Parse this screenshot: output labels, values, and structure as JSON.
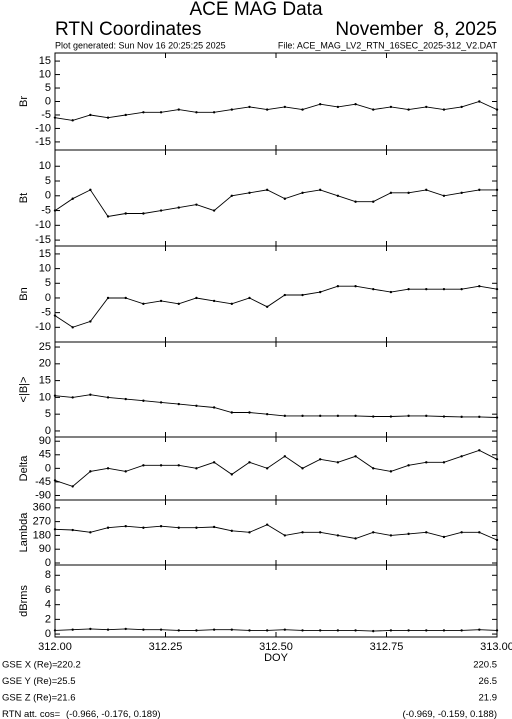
{
  "header": {
    "title": "ACE MAG Data",
    "left": "RTN Coordinates",
    "right": "November  8, 2025",
    "generated": "Plot generated: Sun Nov 16 20:25:25 2025",
    "file": "File:  ACE_MAG_LV2_RTN_16SEC_2025-312_V2.DAT"
  },
  "chart_data": [
    {
      "type": "line",
      "ylabel": "Br",
      "color": "#000000",
      "ylim": [
        -18,
        18
      ],
      "yticks": [
        15,
        10,
        5,
        0,
        -5,
        -10,
        -15
      ],
      "x": [
        312.0,
        312.04,
        312.08,
        312.12,
        312.16,
        312.2,
        312.24,
        312.28,
        312.32,
        312.36,
        312.4,
        312.44,
        312.48,
        312.52,
        312.56,
        312.6,
        312.64,
        312.68,
        312.72,
        312.76,
        312.8,
        312.84,
        312.88,
        312.92,
        312.96,
        313.0
      ],
      "values": [
        -6,
        -7,
        -5,
        -6,
        -5,
        -4,
        -4,
        -3,
        -4,
        -4,
        -3,
        -2,
        -3,
        -2,
        -3,
        -1,
        -2,
        -1,
        -3,
        -2,
        -3,
        -2,
        -3,
        -2,
        0,
        -3
      ]
    },
    {
      "type": "line",
      "ylabel": "Bt",
      "color": "#000000",
      "ylim": [
        -17,
        15.5
      ],
      "yticks": [
        10,
        5,
        0,
        -5,
        -10,
        -15
      ],
      "x": [
        312.0,
        312.04,
        312.08,
        312.12,
        312.16,
        312.2,
        312.24,
        312.28,
        312.32,
        312.36,
        312.4,
        312.44,
        312.48,
        312.52,
        312.56,
        312.6,
        312.64,
        312.68,
        312.72,
        312.76,
        312.8,
        312.84,
        312.88,
        312.92,
        312.96,
        313.0
      ],
      "values": [
        -5,
        -1,
        2,
        -7,
        -6,
        -6,
        -5,
        -4,
        -3,
        -5,
        0,
        1,
        2,
        -1,
        1,
        2,
        0,
        -2,
        -2,
        1,
        1,
        2,
        0,
        1,
        2,
        2
      ]
    },
    {
      "type": "line",
      "ylabel": "Bn",
      "color": "#000000",
      "ylim": [
        -15,
        17.7
      ],
      "yticks": [
        15,
        10,
        5,
        0,
        -5,
        -10
      ],
      "x": [
        312.0,
        312.04,
        312.08,
        312.12,
        312.16,
        312.2,
        312.24,
        312.28,
        312.32,
        312.36,
        312.4,
        312.44,
        312.48,
        312.52,
        312.56,
        312.6,
        312.64,
        312.68,
        312.72,
        312.76,
        312.8,
        312.84,
        312.88,
        312.92,
        312.96,
        313.0
      ],
      "values": [
        -6,
        -10,
        -8,
        0,
        0,
        -2,
        -1,
        -2,
        0,
        -1,
        -2,
        0,
        -3,
        1,
        1,
        2,
        4,
        4,
        3,
        2,
        3,
        3,
        3,
        3,
        4,
        3
      ]
    },
    {
      "type": "line",
      "ylabel": "<|B|>",
      "color": "#000000",
      "ylim": [
        -1.8,
        26.5
      ],
      "yticks": [
        25,
        20,
        15,
        10,
        5,
        0
      ],
      "x": [
        312.0,
        312.04,
        312.08,
        312.12,
        312.16,
        312.2,
        312.24,
        312.28,
        312.32,
        312.36,
        312.4,
        312.44,
        312.48,
        312.52,
        312.56,
        312.6,
        312.64,
        312.68,
        312.72,
        312.76,
        312.8,
        312.84,
        312.88,
        312.92,
        312.96,
        313.0
      ],
      "values": [
        10.5,
        10,
        10.8,
        10,
        9.5,
        9,
        8.5,
        8,
        7.5,
        7,
        5.5,
        5.5,
        5,
        4.5,
        4.5,
        4.5,
        4.5,
        4.5,
        4.3,
        4.3,
        4.5,
        4.5,
        4.3,
        4.2,
        4.2,
        4
      ]
    },
    {
      "type": "line",
      "ylabel": "Delta",
      "color": "#000000",
      "ylim": [
        -105,
        104
      ],
      "yticks": [
        90,
        45,
        0,
        -45,
        -90
      ],
      "x": [
        312.0,
        312.04,
        312.08,
        312.12,
        312.16,
        312.2,
        312.24,
        312.28,
        312.32,
        312.36,
        312.4,
        312.44,
        312.48,
        312.52,
        312.56,
        312.6,
        312.64,
        312.68,
        312.72,
        312.76,
        312.8,
        312.84,
        312.88,
        312.92,
        312.96,
        313.0
      ],
      "values": [
        -40,
        -60,
        -10,
        0,
        -10,
        10,
        10,
        10,
        0,
        20,
        -20,
        20,
        0,
        40,
        0,
        30,
        20,
        40,
        0,
        -10,
        10,
        20,
        20,
        40,
        60,
        30
      ]
    },
    {
      "type": "line",
      "ylabel": "Lambda",
      "color": "#000000",
      "ylim": [
        -13,
        411
      ],
      "yticks": [
        360,
        270,
        180,
        90,
        0
      ],
      "x": [
        312.0,
        312.04,
        312.08,
        312.12,
        312.16,
        312.2,
        312.24,
        312.28,
        312.32,
        312.36,
        312.4,
        312.44,
        312.48,
        312.52,
        312.56,
        312.6,
        312.64,
        312.68,
        312.72,
        312.76,
        312.8,
        312.84,
        312.88,
        312.92,
        312.96,
        313.0
      ],
      "values": [
        220,
        215,
        200,
        230,
        240,
        230,
        240,
        230,
        230,
        235,
        210,
        200,
        250,
        180,
        200,
        200,
        180,
        160,
        200,
        180,
        190,
        200,
        170,
        200,
        200,
        150
      ]
    },
    {
      "type": "line",
      "ylabel": "dBrms",
      "xlabel": "DOY",
      "color": "#000000",
      "ylim": [
        -0.4,
        9.4
      ],
      "yticks": [
        8,
        6,
        4,
        2,
        0
      ],
      "xlim": [
        312.0,
        313.0
      ],
      "xticks": [
        {
          "value": 312.0,
          "label": "312.00"
        },
        {
          "value": 312.25,
          "label": "312.25"
        },
        {
          "value": 312.5,
          "label": "312.50"
        },
        {
          "value": 312.75,
          "label": "312.75"
        },
        {
          "value": 313.0,
          "label": "313.00"
        }
      ],
      "x": [
        312.0,
        312.04,
        312.08,
        312.12,
        312.16,
        312.2,
        312.24,
        312.28,
        312.32,
        312.36,
        312.4,
        312.44,
        312.48,
        312.52,
        312.56,
        312.6,
        312.64,
        312.68,
        312.72,
        312.76,
        312.8,
        312.84,
        312.88,
        312.92,
        312.96,
        313.0
      ],
      "values": [
        0.5,
        0.6,
        0.7,
        0.6,
        0.7,
        0.6,
        0.6,
        0.5,
        0.5,
        0.6,
        0.6,
        0.5,
        0.5,
        0.6,
        0.5,
        0.5,
        0.5,
        0.5,
        0.4,
        0.5,
        0.5,
        0.5,
        0.5,
        0.5,
        0.6,
        0.5
      ]
    }
  ],
  "footer": [
    {
      "label": "GSE X (Re)=",
      "start": "220.2",
      "end": "220.5"
    },
    {
      "label": "GSE Y (Re)=",
      "start": "25.5",
      "end": "26.5"
    },
    {
      "label": "GSE Z (Re)=",
      "start": "21.6",
      "end": "21.9"
    },
    {
      "label": "RTN att. cos=",
      "start": "(-0.966, -0.176, 0.189)",
      "end": "(-0.969, -0.159, 0.188)"
    }
  ]
}
